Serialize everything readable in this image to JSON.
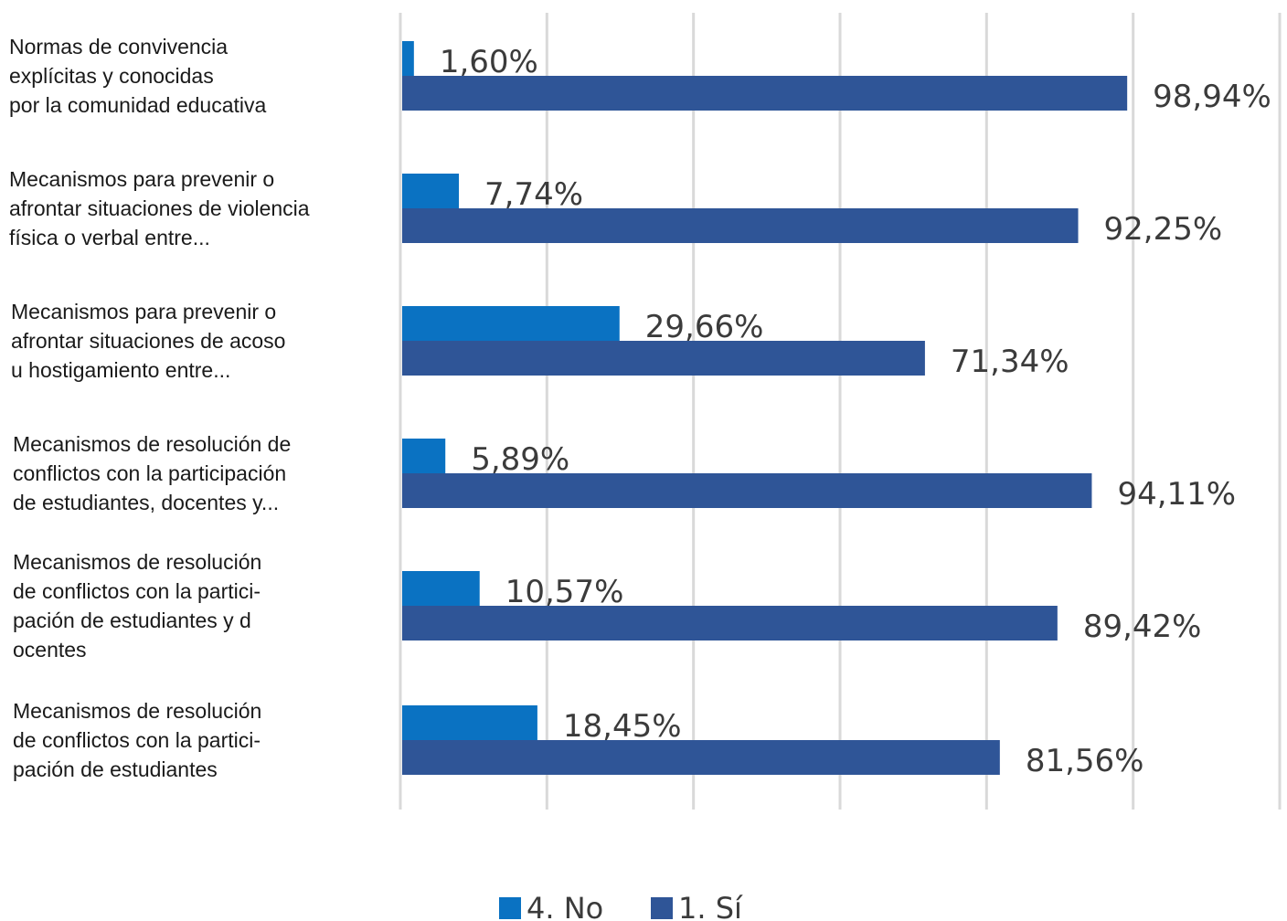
{
  "colors": {
    "no": "#0a72c2",
    "si": "#2f5597",
    "grid": "#d9d9d9",
    "text": "#3b3b3b",
    "category_text": "#1a1a1a"
  },
  "legend": [
    {
      "key": "no",
      "label": "4. No"
    },
    {
      "key": "si",
      "label": "1. Sí"
    }
  ],
  "chart_data": {
    "type": "bar",
    "orientation": "horizontal",
    "categories": [
      [
        "Normas de convivencia",
        "explícitas y conocidas",
        "por la comunidad educativa"
      ],
      [
        "Mecanismos para prevenir o",
        "afrontar situaciones de violencia",
        "física o verbal entre..."
      ],
      [
        "Mecanismos para prevenir o",
        "afrontar situaciones de acoso",
        "u hostigamiento entre..."
      ],
      [
        "Mecanismos de resolución de",
        "conflictos con la participación",
        "de estudiantes, docentes y..."
      ],
      [
        "Mecanismos de resolución",
        "de conflictos con la partici-",
        "pación de estudiantes y d",
        "ocentes"
      ],
      [
        "Mecanismos de resolución",
        "de conflictos con la partici-",
        "pación de estudiantes"
      ]
    ],
    "series": [
      {
        "name": "4. No",
        "key": "no",
        "values": [
          1.6,
          7.74,
          29.66,
          5.89,
          10.57,
          18.45
        ],
        "labels": [
          "1,60%",
          "7,74%",
          "29,66%",
          "5,89%",
          "10,57%",
          "18,45%"
        ]
      },
      {
        "name": "1. Sí",
        "key": "si",
        "values": [
          98.94,
          92.25,
          71.34,
          94.11,
          89.42,
          81.56
        ],
        "labels": [
          "98,94%",
          "92,25%",
          "71,34%",
          "94,11%",
          "89,42%",
          "81,56%"
        ]
      }
    ],
    "xlim": [
      0,
      120
    ],
    "grid": true,
    "legend_position": "bottom"
  }
}
